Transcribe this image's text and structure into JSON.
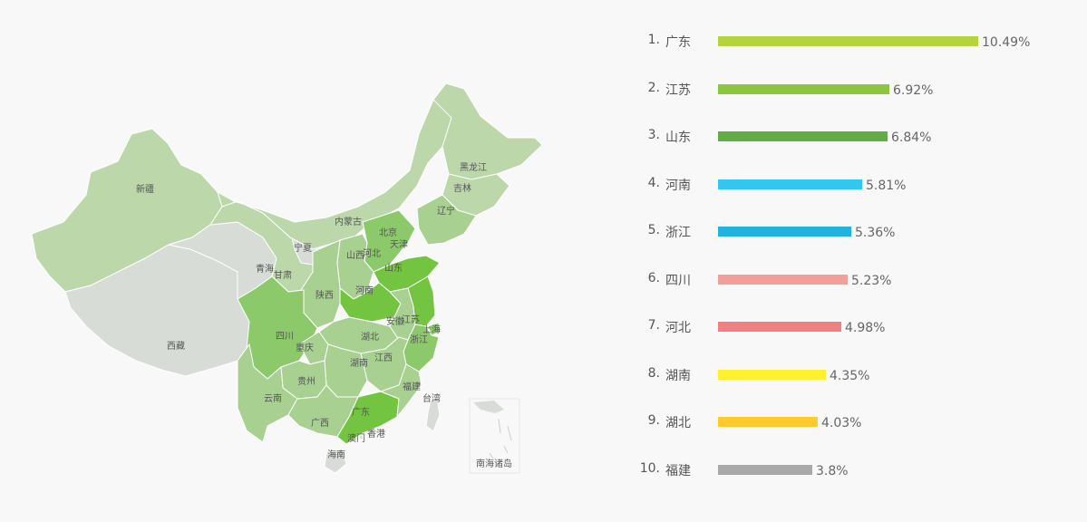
{
  "chart_data": [
    {
      "type": "map",
      "regions": [
        {
          "name": "新疆",
          "level": 1
        },
        {
          "name": "西藏",
          "level": 0
        },
        {
          "name": "青海",
          "level": 0
        },
        {
          "name": "甘肃",
          "level": 1
        },
        {
          "name": "宁夏",
          "level": 0
        },
        {
          "name": "内蒙古",
          "level": 1
        },
        {
          "name": "黑龙江",
          "level": 1
        },
        {
          "name": "吉林",
          "level": 1
        },
        {
          "name": "辽宁",
          "level": 2
        },
        {
          "name": "北京",
          "level": 3
        },
        {
          "name": "天津",
          "level": 2
        },
        {
          "name": "河北",
          "level": 3
        },
        {
          "name": "山西",
          "level": 2
        },
        {
          "name": "山东",
          "level": 4
        },
        {
          "name": "河南",
          "level": 4
        },
        {
          "name": "陕西",
          "level": 2
        },
        {
          "name": "四川",
          "level": 3
        },
        {
          "name": "重庆",
          "level": 2
        },
        {
          "name": "湖北",
          "level": 2
        },
        {
          "name": "安徽",
          "level": 2
        },
        {
          "name": "江苏",
          "level": 4
        },
        {
          "name": "上海",
          "level": 3
        },
        {
          "name": "浙江",
          "level": 3
        },
        {
          "name": "江西",
          "level": 2
        },
        {
          "name": "湖南",
          "level": 2
        },
        {
          "name": "贵州",
          "level": 2
        },
        {
          "name": "云南",
          "level": 2
        },
        {
          "name": "广西",
          "level": 2
        },
        {
          "name": "广东",
          "level": 4
        },
        {
          "name": "福建",
          "level": 2
        },
        {
          "name": "台湾",
          "level": 0
        },
        {
          "name": "海南",
          "level": 0
        },
        {
          "name": "香港",
          "level": 0
        },
        {
          "name": "澳门",
          "level": 0
        }
      ],
      "inset_label": "南海诸岛"
    },
    {
      "type": "bar",
      "orientation": "horizontal",
      "xlim": [
        0,
        10.49
      ],
      "rows": [
        {
          "rank": "1.",
          "name": "广东",
          "value": 10.49,
          "label": "10.49%",
          "color": "#b5d33d"
        },
        {
          "rank": "2.",
          "name": "江苏",
          "value": 6.92,
          "label": "6.92%",
          "color": "#8cc63e"
        },
        {
          "rank": "3.",
          "name": "山东",
          "value": 6.84,
          "label": "6.84%",
          "color": "#63ab44"
        },
        {
          "rank": "4.",
          "name": "河南",
          "value": 5.81,
          "label": "5.81%",
          "color": "#33c6f0"
        },
        {
          "rank": "5.",
          "name": "浙江",
          "value": 5.36,
          "label": "5.36%",
          "color": "#21b2de"
        },
        {
          "rank": "6.",
          "name": "四川",
          "value": 5.23,
          "label": "5.23%",
          "color": "#f29e9a"
        },
        {
          "rank": "7.",
          "name": "河北",
          "value": 4.98,
          "label": "4.98%",
          "color": "#f07f82"
        },
        {
          "rank": "8.",
          "name": "湖南",
          "value": 4.35,
          "label": "4.35%",
          "color": "#fff12e"
        },
        {
          "rank": "9.",
          "name": "湖北",
          "value": 4.03,
          "label": "4.03%",
          "color": "#fdcb2e"
        },
        {
          "rank": "10.",
          "name": "福建",
          "value": 3.8,
          "label": "3.8%",
          "color": "#a9a9a9"
        }
      ]
    }
  ],
  "colors": {
    "level0": "#d7ddd6",
    "level1": "#bcd8ab",
    "level2": "#a8d191",
    "level3": "#8cc96a",
    "level4": "#73c440",
    "border": "#ffffff"
  }
}
